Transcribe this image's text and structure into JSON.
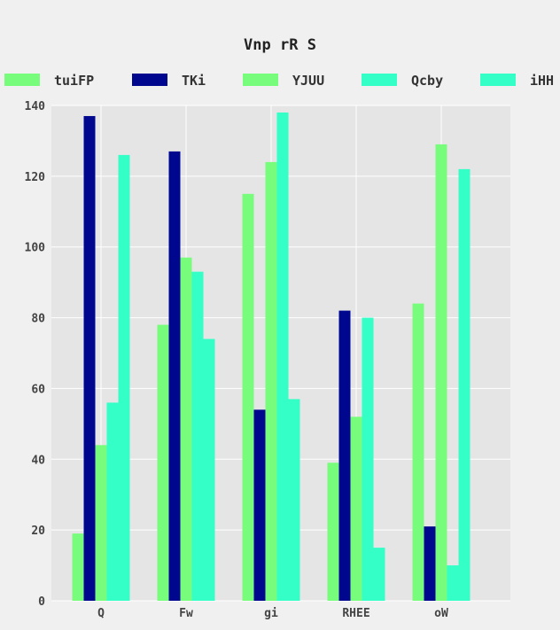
{
  "chart_data": {
    "type": "bar",
    "title": "Vnp rR S",
    "xlabel": "",
    "ylabel": "",
    "categories": [
      "Q",
      "Fw",
      "gi",
      "RHEE",
      "oW"
    ],
    "series": [
      {
        "name": "tuiFP",
        "color": "#77fc7c",
        "values": [
          19,
          78,
          115,
          39,
          84
        ]
      },
      {
        "name": "TKi",
        "color": "#00078f",
        "values": [
          137,
          127,
          54,
          82,
          21
        ]
      },
      {
        "name": "YJUU",
        "color": "#77fc7c",
        "values": [
          44,
          97,
          124,
          52,
          129
        ]
      },
      {
        "name": "Qcby",
        "color": "#33ffc6",
        "values": [
          56,
          93,
          138,
          80,
          10
        ]
      },
      {
        "name": "iHH",
        "color": "#33ffc6",
        "values": [
          126,
          74,
          57,
          15,
          122
        ]
      }
    ],
    "ylim": [
      0,
      140
    ],
    "yticks": [
      0,
      20,
      40,
      60,
      80,
      100,
      120,
      140
    ],
    "grid": true,
    "legend_position": "top"
  }
}
